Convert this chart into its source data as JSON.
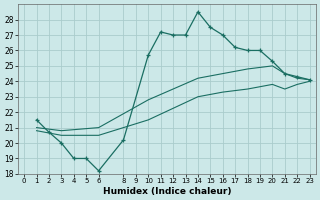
{
  "xlabel": "Humidex (Indice chaleur)",
  "background_color": "#cce8e8",
  "grid_color": "#aacccc",
  "line_color": "#1a6e62",
  "xlim": [
    -0.5,
    23.5
  ],
  "ylim": [
    18,
    29
  ],
  "xtick_vals": [
    0,
    1,
    2,
    3,
    4,
    5,
    6,
    8,
    9,
    10,
    11,
    12,
    13,
    14,
    15,
    16,
    17,
    18,
    19,
    20,
    21,
    22,
    23
  ],
  "xtick_labels": [
    "0",
    "1",
    "2",
    "3",
    "4",
    "5",
    "6",
    "8",
    "9",
    "10",
    "11",
    "12",
    "13",
    "14",
    "15",
    "16",
    "17",
    "18",
    "19",
    "20",
    "21",
    "22",
    "23"
  ],
  "ytick_vals": [
    18,
    19,
    20,
    21,
    22,
    23,
    24,
    25,
    26,
    27,
    28
  ],
  "series": [
    {
      "x": [
        1,
        2,
        3,
        4,
        5,
        6,
        8,
        10,
        11,
        12,
        13,
        14,
        15,
        16,
        17,
        18,
        19,
        20,
        21,
        22,
        23
      ],
      "y": [
        21.5,
        20.7,
        20.0,
        19.0,
        19.0,
        18.2,
        20.2,
        25.7,
        27.2,
        27.0,
        27.0,
        28.5,
        27.5,
        27.0,
        26.2,
        26.0,
        26.0,
        25.3,
        24.5,
        24.3,
        24.1
      ],
      "marker": true
    },
    {
      "x": [
        1,
        3,
        6,
        10,
        14,
        16,
        18,
        20,
        21,
        22,
        23
      ],
      "y": [
        21.0,
        20.8,
        21.0,
        22.8,
        24.2,
        24.5,
        24.8,
        25.0,
        24.5,
        24.2,
        24.1
      ],
      "marker": false
    },
    {
      "x": [
        1,
        3,
        6,
        10,
        14,
        16,
        18,
        20,
        21,
        22,
        23
      ],
      "y": [
        20.8,
        20.5,
        20.5,
        21.5,
        23.0,
        23.3,
        23.5,
        23.8,
        23.5,
        23.8,
        24.0
      ],
      "marker": false
    }
  ]
}
